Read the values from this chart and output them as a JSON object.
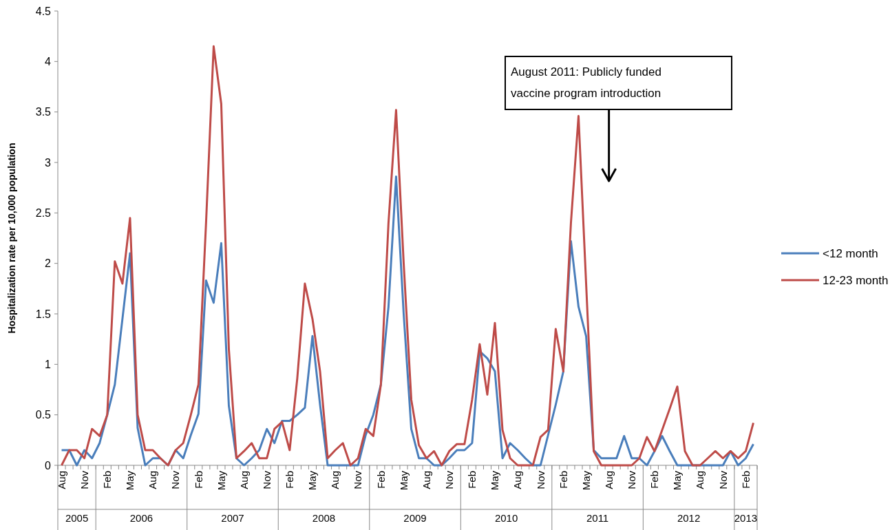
{
  "chart_data": {
    "type": "line",
    "ylabel": "Hospitalization  rate per 10,000 population",
    "categories": [
      "Aug",
      null,
      null,
      "Nov",
      null,
      null,
      "Feb",
      null,
      null,
      "May",
      null,
      null,
      "Aug",
      null,
      null,
      "Nov",
      null,
      null,
      "Feb",
      null,
      null,
      "May",
      null,
      null,
      "Aug",
      null,
      null,
      "Nov",
      null,
      null,
      "Feb",
      null,
      null,
      "May",
      null,
      null,
      "Aug",
      null,
      null,
      "Nov",
      null,
      null,
      "Feb",
      null,
      null,
      "May",
      null,
      null,
      "Aug",
      null,
      null,
      "Nov",
      null,
      null,
      "Feb",
      null,
      null,
      "May",
      null,
      null,
      "Aug",
      null,
      null,
      "Nov",
      null,
      null,
      "Feb",
      null,
      null,
      "May",
      null,
      null,
      "Aug",
      null,
      null,
      "Nov",
      null,
      null,
      "Feb",
      null,
      null,
      "May",
      null,
      null,
      "Aug",
      null,
      null,
      "Nov",
      null,
      null,
      "Feb",
      null
    ],
    "series": [
      {
        "name": "<12 month",
        "color": "#4a7ebb",
        "values": [
          0.15,
          0.15,
          0,
          0.15,
          0.07,
          0.22,
          0.5,
          0.8,
          1.45,
          2.1,
          0.37,
          0,
          0.07,
          0.07,
          0,
          0.15,
          0.07,
          0.3,
          0.51,
          1.83,
          1.61,
          2.2,
          0.59,
          0.07,
          0,
          0.07,
          0.15,
          0.36,
          0.22,
          0.44,
          0.44,
          0.5,
          0.57,
          1.28,
          0.6,
          0,
          0,
          0,
          0,
          0,
          0.3,
          0.5,
          0.8,
          1.57,
          2.86,
          1.5,
          0.36,
          0.07,
          0.07,
          0,
          0,
          0.07,
          0.15,
          0.15,
          0.22,
          1.13,
          1.06,
          0.93,
          0.07,
          0.22,
          0.15,
          0.07,
          0,
          0,
          0.3,
          0.6,
          0.93,
          2.22,
          1.57,
          1.28,
          0.15,
          0.07,
          0.07,
          0.07,
          0.29,
          0.07,
          0.07,
          0,
          0.14,
          0.29,
          0.14,
          0,
          0,
          0,
          0,
          0,
          0,
          0,
          0.14,
          0,
          0.07,
          0.21
        ]
      },
      {
        "name": "12-23 month",
        "color": "#be4b48",
        "values": [
          0,
          0.15,
          0.15,
          0.07,
          0.36,
          0.29,
          0.5,
          2.02,
          1.8,
          2.45,
          0.5,
          0.15,
          0.15,
          0.07,
          0,
          0.15,
          0.22,
          0.5,
          0.8,
          2.4,
          4.15,
          3.58,
          1.15,
          0.07,
          0.14,
          0.22,
          0.07,
          0.07,
          0.36,
          0.43,
          0.15,
          0.86,
          1.8,
          1.45,
          0.93,
          0.07,
          0.15,
          0.22,
          0,
          0.07,
          0.36,
          0.29,
          0.8,
          2.4,
          3.52,
          2.0,
          0.65,
          0.2,
          0.07,
          0.14,
          0,
          0.14,
          0.21,
          0.21,
          0.65,
          1.2,
          0.7,
          1.41,
          0.35,
          0.07,
          0,
          0,
          0,
          0.28,
          0.35,
          1.35,
          0.93,
          2.4,
          3.46,
          1.8,
          0.14,
          0,
          0,
          0,
          0,
          0,
          0.07,
          0.28,
          0.14,
          0.35,
          0.56,
          0.78,
          0.14,
          0,
          0,
          0.07,
          0.14,
          0.07,
          0.14,
          0.07,
          0.14,
          0.42
        ]
      }
    ],
    "ylim": [
      0,
      4.5
    ],
    "yticks": [
      0,
      0.5,
      1,
      1.5,
      2,
      2.5,
      3,
      3.5,
      4,
      4.5
    ],
    "grid": false,
    "legend": "right",
    "line_style": "solid",
    "marker": "none",
    "annotations": [
      "August 2011: Publicly funded vaccine program introduction",
      "2005",
      "2006",
      "2007",
      "2008",
      "2009",
      "2010",
      "2011",
      "2012",
      "2013"
    ]
  }
}
